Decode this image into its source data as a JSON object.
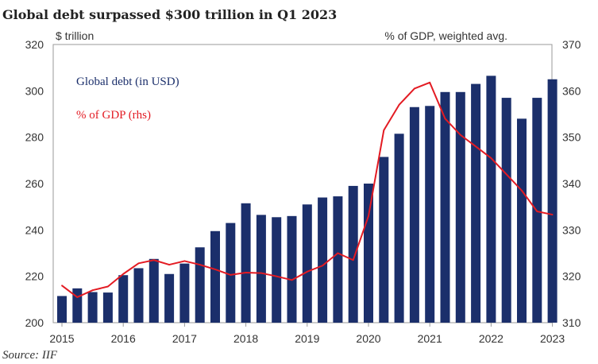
{
  "chart_data": {
    "type": "bar",
    "title": "Global debt surpassed $300  trillion in Q1 2023",
    "left_axis_unit": "$ trillion",
    "right_axis_unit": "% of GDP, weighted avg.",
    "source": "Source: IIF",
    "x_tick_labels": [
      "2015",
      "2016",
      "2017",
      "2018",
      "2019",
      "2020",
      "2021",
      "2022",
      "2023"
    ],
    "ylim_left": [
      200,
      320
    ],
    "yticks_left": [
      200,
      220,
      240,
      260,
      280,
      300,
      320
    ],
    "ylim_right": [
      310,
      370
    ],
    "yticks_right": [
      310,
      320,
      330,
      340,
      350,
      360,
      370
    ],
    "bar_color": "#1B2F6B",
    "line_color": "#E31B23",
    "series": [
      {
        "name": "Global debt (in USD)",
        "type": "bar",
        "axis": "left",
        "values": [
          211.5,
          214.8,
          213.2,
          213.0,
          220.5,
          223.5,
          227.5,
          221.0,
          225.5,
          232.5,
          239.5,
          243.0,
          251.5,
          246.5,
          245.5,
          246.0,
          251.0,
          254.0,
          254.5,
          259.0,
          260.0,
          271.5,
          281.5,
          293.0,
          293.5,
          299.5,
          299.5,
          303.0,
          306.5,
          297.0,
          288.0,
          297.0,
          305.0
        ]
      },
      {
        "name": "% of GDP (rhs)",
        "type": "line",
        "axis": "right",
        "values": [
          318.0,
          315.5,
          317.0,
          317.8,
          320.5,
          322.8,
          323.5,
          322.5,
          323.3,
          322.5,
          321.5,
          320.3,
          320.8,
          320.7,
          320.0,
          319.2,
          321.0,
          322.3,
          325.0,
          323.5,
          333.0,
          351.5,
          357.0,
          360.5,
          361.8,
          354.0,
          350.5,
          348.0,
          345.5,
          342.0,
          338.5,
          334.0,
          333.3
        ]
      }
    ]
  }
}
